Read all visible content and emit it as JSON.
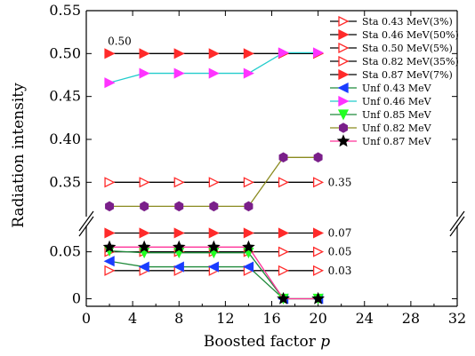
{
  "chart_data": {
    "type": "line",
    "title": "",
    "xlabel": "Boosted factor ",
    "xlabel_italic": "p",
    "ylabel": "Radiation intensity",
    "xlim": [
      0,
      32
    ],
    "x_ticks": [
      0,
      4,
      8,
      12,
      16,
      20,
      24,
      28,
      32
    ],
    "x_tick_labels": [
      "0",
      "4",
      "8",
      "12",
      "16",
      "20",
      "24",
      "28",
      "32"
    ],
    "y_axis_break": true,
    "upper_ylim": [
      0.31,
      0.55
    ],
    "upper_ticks": [
      0.35,
      0.4,
      0.45,
      0.5,
      0.55
    ],
    "upper_tick_labels": [
      "0.35",
      "0.40",
      "0.45",
      "0.50",
      "0.55"
    ],
    "lower_ylim": [
      -0.008,
      0.078
    ],
    "lower_ticks": [
      0,
      0.05
    ],
    "lower_tick_labels": [
      "0",
      "0.05"
    ],
    "grid": false,
    "legend_position": "top-right",
    "x": [
      2,
      5,
      8,
      11,
      14,
      17,
      20
    ],
    "series": [
      {
        "name": "Sta 0.43 MeV(3%)",
        "color": "#ff2a2a",
        "marker": "tri-right-open",
        "values": [
          0.03,
          0.03,
          0.03,
          0.03,
          0.03,
          0.03,
          0.03
        ]
      },
      {
        "name": "Sta 0.46 MeV(50%)",
        "color": "#ff2a2a",
        "marker": "tri-right-filled",
        "values": [
          0.5,
          0.5,
          0.5,
          0.5,
          0.5,
          0.5,
          0.5
        ]
      },
      {
        "name": "Sta 0.50 MeV(5%)",
        "color": "#ff2a2a",
        "marker": "tri-right-open",
        "values": [
          0.05,
          0.05,
          0.05,
          0.05,
          0.05,
          0.05,
          0.05
        ]
      },
      {
        "name": "Sta 0.82 MeV(35%)",
        "color": "#ff2a2a",
        "marker": "tri-right-open",
        "values": [
          0.35,
          0.35,
          0.35,
          0.35,
          0.35,
          0.35,
          0.35
        ]
      },
      {
        "name": "Sta 0.87 MeV(7%)",
        "color": "#ff2a2a",
        "marker": "tri-right-filled",
        "values": [
          0.07,
          0.07,
          0.07,
          0.07,
          0.07,
          0.07,
          0.07
        ]
      },
      {
        "name": "Unf 0.43 MeV",
        "color": "#1a3cff",
        "marker": "tri-left-filled",
        "values": [
          0.04,
          0.034,
          0.034,
          0.034,
          0.034,
          0.0,
          0.0
        ]
      },
      {
        "name": "Unf 0.46 MeV",
        "color": "#ff33ff",
        "marker": "tri-right-filled",
        "values": [
          0.466,
          0.477,
          0.477,
          0.477,
          0.477,
          0.501,
          0.501
        ]
      },
      {
        "name": "Unf 0.85 MeV",
        "color": "#22ff22",
        "marker": "tri-down-filled",
        "values": [
          0.051,
          0.049,
          0.049,
          0.049,
          0.049,
          0.0,
          0.0
        ]
      },
      {
        "name": "Unf 0.82 MeV",
        "color": "#7a1f8a",
        "marker": "hexagon-filled",
        "values": [
          0.322,
          0.322,
          0.322,
          0.322,
          0.322,
          0.379,
          0.379
        ]
      },
      {
        "name": "Unf 0.87 MeV",
        "color": "#000000",
        "marker": "star-filled",
        "values": [
          0.055,
          0.055,
          0.055,
          0.055,
          0.055,
          0.0,
          0.0
        ]
      }
    ],
    "line_colors": {
      "Unf 0.43 MeV": "#1f8a3a",
      "Unf 0.46 MeV": "#22cccc",
      "Unf 0.85 MeV": "#1f8a3a",
      "Unf 0.82 MeV": "#8a8a1f",
      "Unf 0.87 MeV": "#ff3399"
    },
    "annotations": [
      {
        "text": "0.50",
        "x": 2,
        "y": 0.5,
        "panel": "upper",
        "anchor": "above-left"
      },
      {
        "text": "0.35",
        "x": 20,
        "y": 0.35,
        "panel": "upper",
        "anchor": "right"
      },
      {
        "text": "0.07",
        "x": 20,
        "y": 0.07,
        "panel": "lower",
        "anchor": "right"
      },
      {
        "text": "0.05",
        "x": 20,
        "y": 0.05,
        "panel": "lower",
        "anchor": "right"
      },
      {
        "text": "0.03",
        "x": 20,
        "y": 0.03,
        "panel": "lower",
        "anchor": "right"
      }
    ]
  }
}
